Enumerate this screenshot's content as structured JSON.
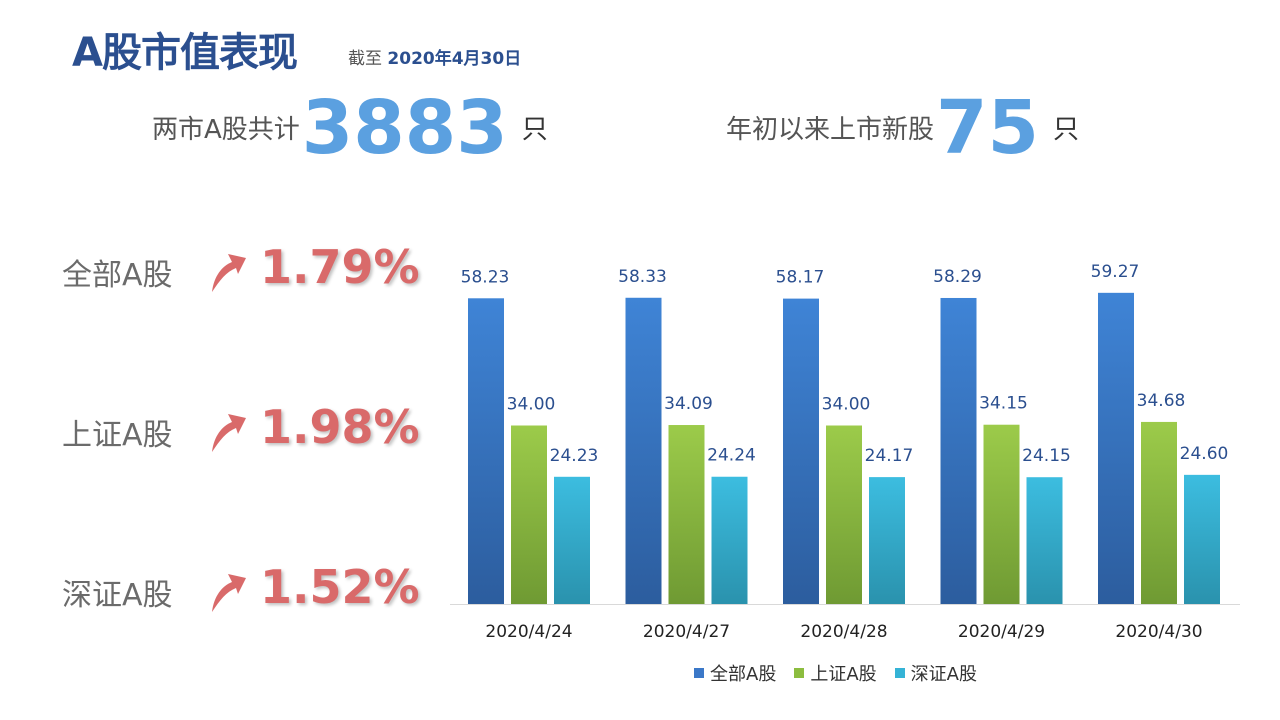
{
  "header": {
    "title": "A股市值表现",
    "asof_prefix": "截至",
    "asof_date": "2020年4月30日"
  },
  "stats": [
    {
      "label": "两市A股共计",
      "value": "3883",
      "unit": "只"
    },
    {
      "label": "年初以来上市新股",
      "value": "75",
      "unit": "只"
    }
  ],
  "changes": [
    {
      "name": "全部A股",
      "pct": "1.79%",
      "direction": "up"
    },
    {
      "name": "上证A股",
      "pct": "1.98%",
      "direction": "up"
    },
    {
      "name": "深证A股",
      "pct": "1.52%",
      "direction": "up"
    }
  ],
  "chart_data": {
    "type": "bar",
    "categories": [
      "2020/4/24",
      "2020/4/27",
      "2020/4/28",
      "2020/4/29",
      "2020/4/30"
    ],
    "series": [
      {
        "name": "全部A股",
        "values": [
          58.23,
          58.33,
          58.17,
          58.29,
          59.27
        ],
        "labels": [
          "58.23",
          "58.33",
          "58.17",
          "58.29",
          "59.27"
        ],
        "color": "#3b78c8"
      },
      {
        "name": "上证A股",
        "values": [
          34.0,
          34.09,
          34.0,
          34.15,
          34.68
        ],
        "labels": [
          "34.00",
          "34.09",
          "34.00",
          "34.15",
          "34.68"
        ],
        "color": "#8cbd3f"
      },
      {
        "name": "深证A股",
        "values": [
          24.23,
          24.24,
          24.17,
          24.15,
          24.6
        ],
        "labels": [
          "24.23",
          "24.24",
          "24.17",
          "24.15",
          "24.60"
        ],
        "color": "#35b3d6"
      }
    ],
    "ylim": [
      0,
      60
    ],
    "legend": "bottom",
    "grid": false,
    "data_labels": true
  }
}
